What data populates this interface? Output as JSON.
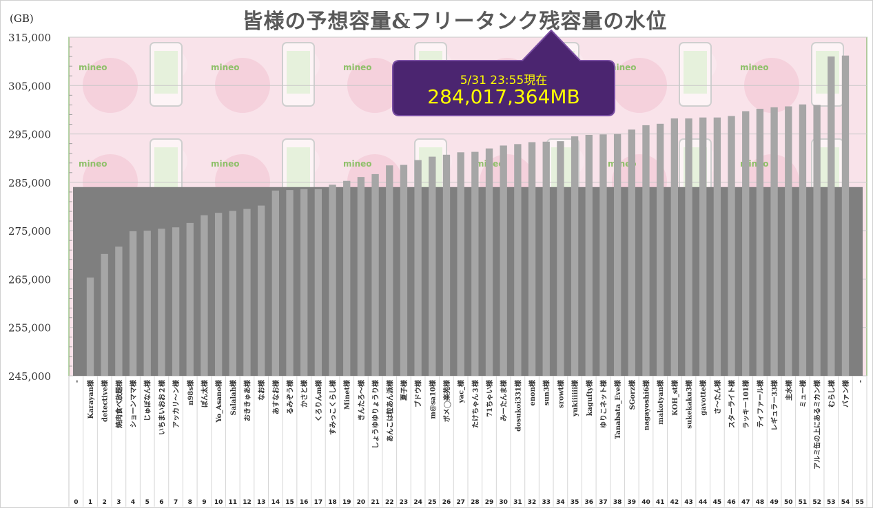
{
  "title": "皆様の予想容量&フリータンク残容量の水位",
  "unit_label": "(GB)",
  "watermark": "mineo",
  "callout": {
    "date": "5/31 23:55現在",
    "value": "284,017,364MB"
  },
  "colors": {
    "bar": "#a6a6a6",
    "water": "#7f7f7f",
    "callout_bg": "#4b2570",
    "callout_text": "#ffff00",
    "plot_border": "#6aa84f",
    "background_tint": "#f7dbe3"
  },
  "chart_data": {
    "type": "bar",
    "title": "皆様の予想容量&フリータンク残容量の水位",
    "ylabel": "(GB)",
    "ylim": [
      245000,
      315000
    ],
    "yticks": [
      "245,000",
      "255,000",
      "265,000",
      "275,000",
      "285,000",
      "295,000",
      "305,000",
      "315,000"
    ],
    "grid": true,
    "water_level": 284017,
    "categories": [
      "-",
      "Karayan様",
      "detective様",
      "焼肉食べ放題様",
      "ショーンママ様",
      "じゅぼなん様",
      "いちまいおお２様",
      "アッカリ〜ン様",
      "n98s様",
      "ぽん太様",
      "Yo_Asano様",
      "Salalah様",
      "おききゅあ様",
      "なお様",
      "あすなお様",
      "るみぞう様",
      "かさと様",
      "くろりんm様",
      "すみっこくらし様",
      "Minet様",
      "きんたろ〜様",
      "しょうゆゆりょうり様",
      "あんこは粒あん派様",
      "夏子様",
      "ブドウ様",
      "m@sa10様",
      "ボメ◯楽苑様",
      "yac_様",
      "たけちゃん３様",
      "71ちゃい様",
      "みーたんま様",
      "dosukoi331様",
      "enon様",
      "sun3様",
      "srowt様",
      "yukiiiiii様",
      "kagufty様",
      "ゆりこネット様",
      "Tanabata_Eve様",
      "SGorz様",
      "nagayoshi6様",
      "makotyan様",
      "KOH_st様",
      "sukekaku3様",
      "gavotte様",
      "さ〜たん様",
      "スターライト様",
      "ラッキー101様",
      "ティファール様",
      "レギュラー33様",
      "主水様",
      "ミュー様",
      "アルミ缶の上にあるミカン様",
      "むらし様",
      "バァン様",
      "-"
    ],
    "indices": [
      "0",
      "1",
      "2",
      "3",
      "4",
      "5",
      "6",
      "7",
      "8",
      "9",
      "10",
      "11",
      "12",
      "13",
      "14",
      "15",
      "16",
      "17",
      "18",
      "19",
      "20",
      "21",
      "22",
      "23",
      "24",
      "25",
      "26",
      "27",
      "28",
      "29",
      "30",
      "31",
      "32",
      "33",
      "34",
      "35",
      "36",
      "37",
      "38",
      "39",
      "40",
      "41",
      "42",
      "43",
      "44",
      "45",
      "46",
      "47",
      "48",
      "49",
      "50",
      "51",
      "52",
      "53",
      "54",
      "55"
    ],
    "values": [
      null,
      265300,
      270200,
      271700,
      274900,
      275000,
      275400,
      275700,
      276600,
      278200,
      278700,
      279100,
      279500,
      280200,
      283300,
      283400,
      283600,
      283600,
      284500,
      285300,
      286100,
      286700,
      288500,
      288600,
      289600,
      290300,
      290700,
      291200,
      291300,
      292000,
      292600,
      292900,
      293300,
      293400,
      293500,
      294500,
      294800,
      294900,
      295000,
      295900,
      296800,
      297100,
      298200,
      298200,
      298400,
      298400,
      298700,
      299700,
      300200,
      300500,
      300700,
      301100,
      301000,
      311000,
      311200,
      null
    ]
  }
}
